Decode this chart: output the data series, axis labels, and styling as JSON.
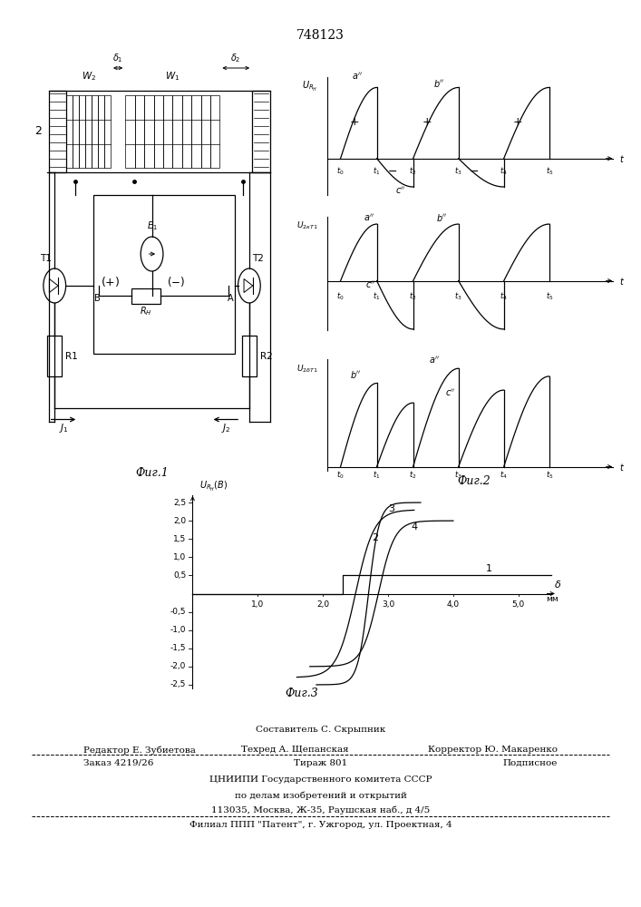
{
  "title": "748123",
  "fig1_label": "Фиг.1",
  "fig2_label": "Фиг.2",
  "fig3_label": "Фиг.3",
  "footer_line0": "Составитель С. Скрыпник",
  "footer_line1_left": "Редактор Е. Зубиетова",
  "footer_line1_mid": "Техред А. Щепанская",
  "footer_line1_right": "Корректор Ю. Макаренко",
  "footer_line2_left": "Заказ 4219/26",
  "footer_line2_mid": "Тираж 801",
  "footer_line2_right": "Подписное",
  "footer_line3": "ЦНИИПИ Государственного комитета СССР",
  "footer_line4": "по делам изобретений и открытий",
  "footer_line5": "113035, Москва, Ж-35, Раушская наб., д 4/5",
  "footer_line6": "Филиал ППП \"Патент\", г. Ужгород, ул. Проектная, 4"
}
